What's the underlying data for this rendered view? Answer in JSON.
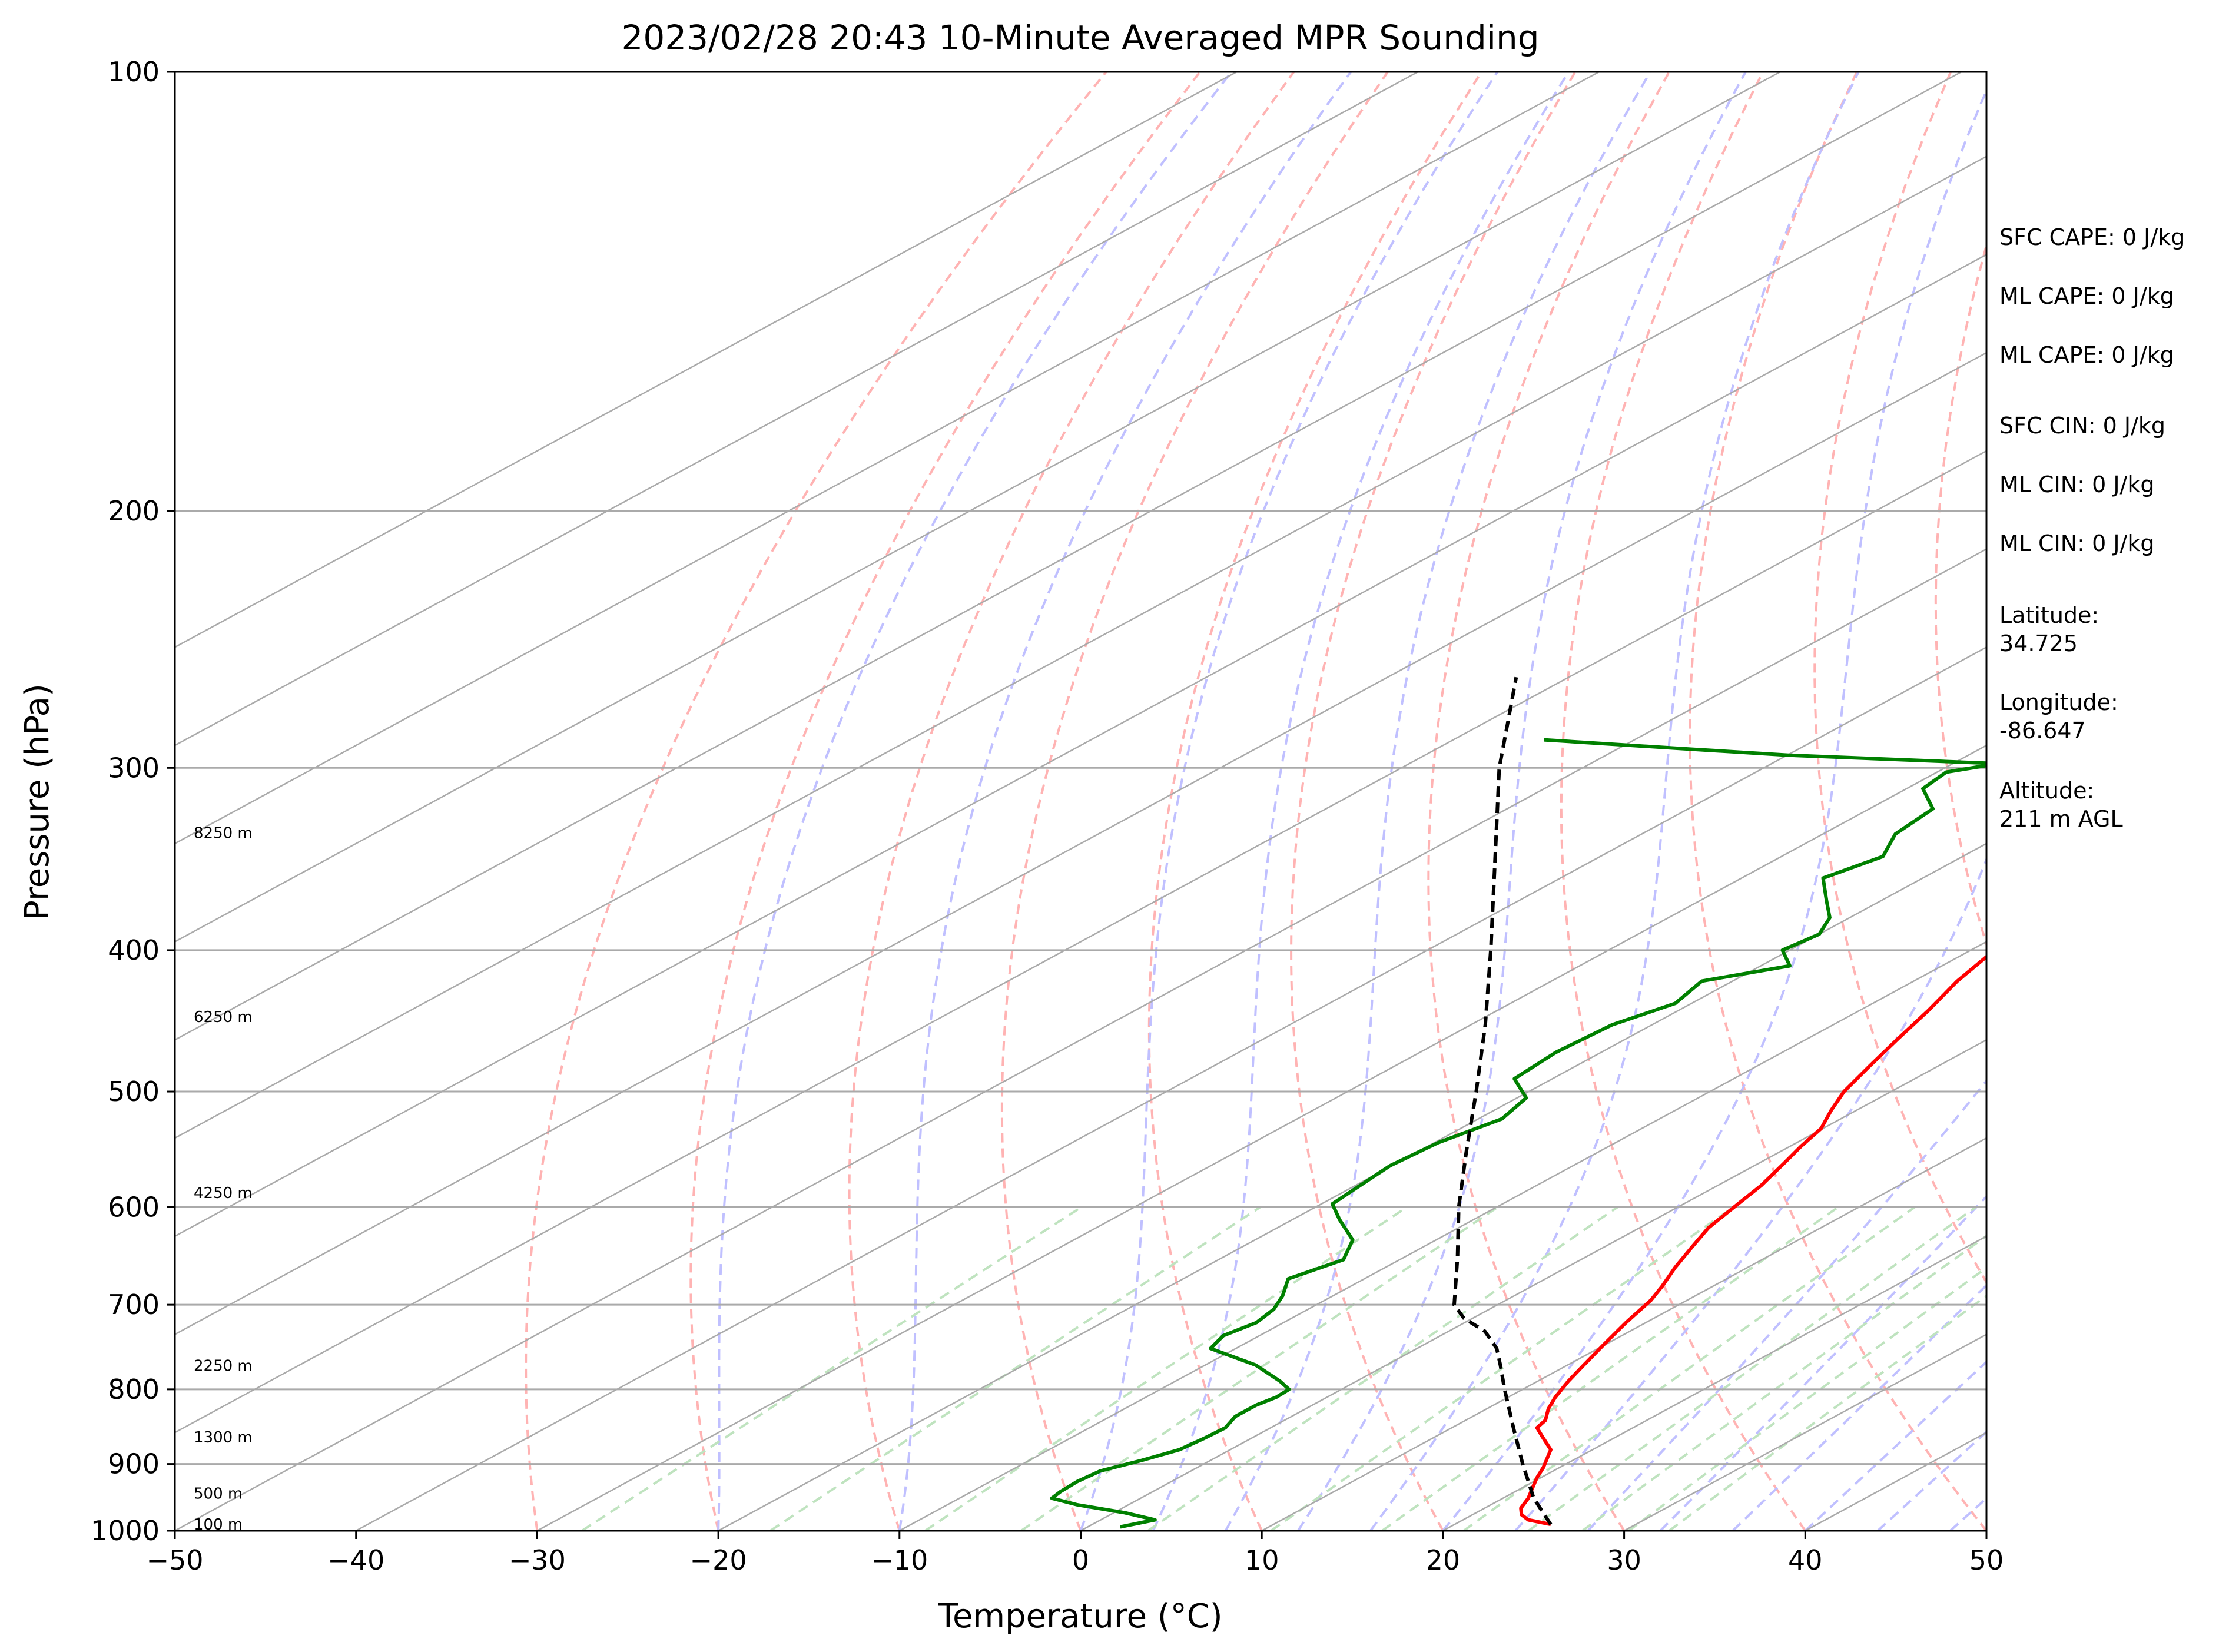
{
  "chart_data": {
    "type": "line",
    "title": "2023/02/28 20:43 10-Minute Averaged MPR Sounding",
    "xlabel": "Temperature (°C)",
    "ylabel": "Pressure (hPa)",
    "xlim": [
      -50,
      50
    ],
    "ylim": [
      1000,
      100
    ],
    "y_scale": "log",
    "skew": true,
    "x_ticks": [
      "−50",
      "−40",
      "−30",
      "−20",
      "−10",
      "0",
      "10",
      "20",
      "30",
      "40",
      "50"
    ],
    "x_tick_values": [
      -50,
      -40,
      -30,
      -20,
      -10,
      0,
      10,
      20,
      30,
      40,
      50
    ],
    "y_ticks": [
      "1000",
      "900",
      "800",
      "700",
      "600",
      "500",
      "400",
      "300",
      "200",
      "100"
    ],
    "y_tick_values": [
      1000,
      900,
      800,
      700,
      600,
      500,
      400,
      300,
      200,
      100
    ],
    "grid": true,
    "series": [
      {
        "color": "#ff0000",
        "style": "solid",
        "points": [
          [
            990,
            25.3
          ],
          [
            983,
            23.6
          ],
          [
            975,
            22.7
          ],
          [
            965,
            22.0
          ],
          [
            950,
            21.4
          ],
          [
            935,
            20.6
          ],
          [
            920,
            19.8
          ],
          [
            905,
            19.1
          ],
          [
            880,
            17.7
          ],
          [
            862,
            15.9
          ],
          [
            850,
            14.7
          ],
          [
            840,
            14.4
          ],
          [
            825,
            13.4
          ],
          [
            810,
            12.6
          ],
          [
            790,
            11.7
          ],
          [
            770,
            10.9
          ],
          [
            745,
            9.9
          ],
          [
            720,
            8.9
          ],
          [
            695,
            8.0
          ],
          [
            680,
            7.2
          ],
          [
            660,
            6.0
          ],
          [
            640,
            4.9
          ],
          [
            620,
            3.8
          ],
          [
            600,
            3.1
          ],
          [
            580,
            2.4
          ],
          [
            560,
            1.4
          ],
          [
            545,
            0.6
          ],
          [
            530,
            -0.1
          ],
          [
            515,
            -1.4
          ],
          [
            500,
            -2.6
          ],
          [
            480,
            -3.8
          ],
          [
            460,
            -5.0
          ],
          [
            440,
            -6.2
          ],
          [
            420,
            -7.6
          ],
          [
            400,
            -8.7
          ],
          [
            385,
            -10.1
          ],
          [
            370,
            -11.2
          ],
          [
            355,
            -12.9
          ],
          [
            340,
            -14.3
          ],
          [
            325,
            -15.8
          ],
          [
            310,
            -17.3
          ],
          [
            295,
            -18.8
          ],
          [
            283,
            -20.5
          ],
          [
            272,
            -22.1
          ],
          [
            262,
            -23.6
          ],
          [
            255,
            -24.6
          ]
        ]
      },
      {
        "color": "#008000",
        "style": "solid",
        "points": [
          [
            994,
            1.8
          ],
          [
            983,
            3.0
          ],
          [
            972,
            0.6
          ],
          [
            960,
            -2.8
          ],
          [
            950,
            -4.9
          ],
          [
            940,
            -5.1
          ],
          [
            925,
            -5.2
          ],
          [
            910,
            -5.0
          ],
          [
            895,
            -3.8
          ],
          [
            880,
            -2.8
          ],
          [
            865,
            -2.6
          ],
          [
            850,
            -2.5
          ],
          [
            835,
            -3.1
          ],
          [
            820,
            -3.1
          ],
          [
            810,
            -2.8
          ],
          [
            800,
            -2.9
          ],
          [
            790,
            -4.2
          ],
          [
            770,
            -7.2
          ],
          [
            750,
            -11.4
          ],
          [
            735,
            -12.0
          ],
          [
            720,
            -11.5
          ],
          [
            705,
            -11.9
          ],
          [
            690,
            -12.8
          ],
          [
            672,
            -14.2
          ],
          [
            652,
            -13.1
          ],
          [
            632,
            -14.6
          ],
          [
            612,
            -17.4
          ],
          [
            597,
            -19.4
          ],
          [
            582,
            -19.7
          ],
          [
            562,
            -20.1
          ],
          [
            542,
            -19.8
          ],
          [
            522,
            -18.7
          ],
          [
            505,
            -19.5
          ],
          [
            490,
            -22.1
          ],
          [
            470,
            -22.5
          ],
          [
            450,
            -22.2
          ],
          [
            435,
            -20.9
          ],
          [
            420,
            -21.7
          ],
          [
            410,
            -18.4
          ],
          [
            400,
            -20.4
          ],
          [
            390,
            -20.0
          ],
          [
            380,
            -21.1
          ],
          [
            370,
            -23.0
          ],
          [
            357,
            -25.5
          ],
          [
            345,
            -24.4
          ],
          [
            333,
            -26.0
          ],
          [
            320,
            -26.5
          ],
          [
            310,
            -29.1
          ],
          [
            302,
            -29.5
          ],
          [
            298,
            -27.5
          ],
          [
            294,
            -40.0
          ],
          [
            291,
            -46.5
          ],
          [
            287,
            -55.0
          ]
        ]
      },
      {
        "color": "#000000",
        "style": "dashed",
        "points": [
          [
            990,
            25.3
          ],
          [
            950,
            21.7
          ],
          [
            900,
            17.6
          ],
          [
            850,
            13.4
          ],
          [
            800,
            9.0
          ],
          [
            770,
            6.3
          ],
          [
            750,
            4.4
          ],
          [
            730,
            2.0
          ],
          [
            715,
            -0.5
          ],
          [
            700,
            -2.4
          ],
          [
            650,
            -7.0
          ],
          [
            600,
            -12.1
          ],
          [
            550,
            -17.3
          ],
          [
            500,
            -22.9
          ],
          [
            450,
            -29.2
          ],
          [
            400,
            -36.5
          ],
          [
            350,
            -44.9
          ],
          [
            300,
            -54.6
          ],
          [
            280,
            -58.6
          ],
          [
            260,
            -62.9
          ]
        ]
      }
    ],
    "height_labels": [
      {
        "text": "100 m",
        "p": 989
      },
      {
        "text": "500 m",
        "p": 942
      },
      {
        "text": "1300 m",
        "p": 862
      },
      {
        "text": "2250 m",
        "p": 770
      },
      {
        "text": "4250 m",
        "p": 586
      },
      {
        "text": "6250 m",
        "p": 444
      },
      {
        "text": "8250 m",
        "p": 332
      }
    ],
    "annotations": [
      "SFC CAPE: 0 J/kg",
      "ML CAPE: 0 J/kg",
      "ML CAPE: 0 J/kg",
      "SFC CIN: 0 J/kg",
      "ML CIN: 0 J/kg",
      "ML CIN: 0 J/kg",
      "Latitude:",
      "34.725",
      "Longitude:",
      "-86.647",
      "Altitude:",
      "211 m AGL"
    ],
    "isotherm_color": "#aaaaaa",
    "dry_adiabat_color": "#ffb3b3",
    "moist_adiabat_color": "#c0c0ff",
    "mixing_ratio_color": "#bfe3bf"
  }
}
